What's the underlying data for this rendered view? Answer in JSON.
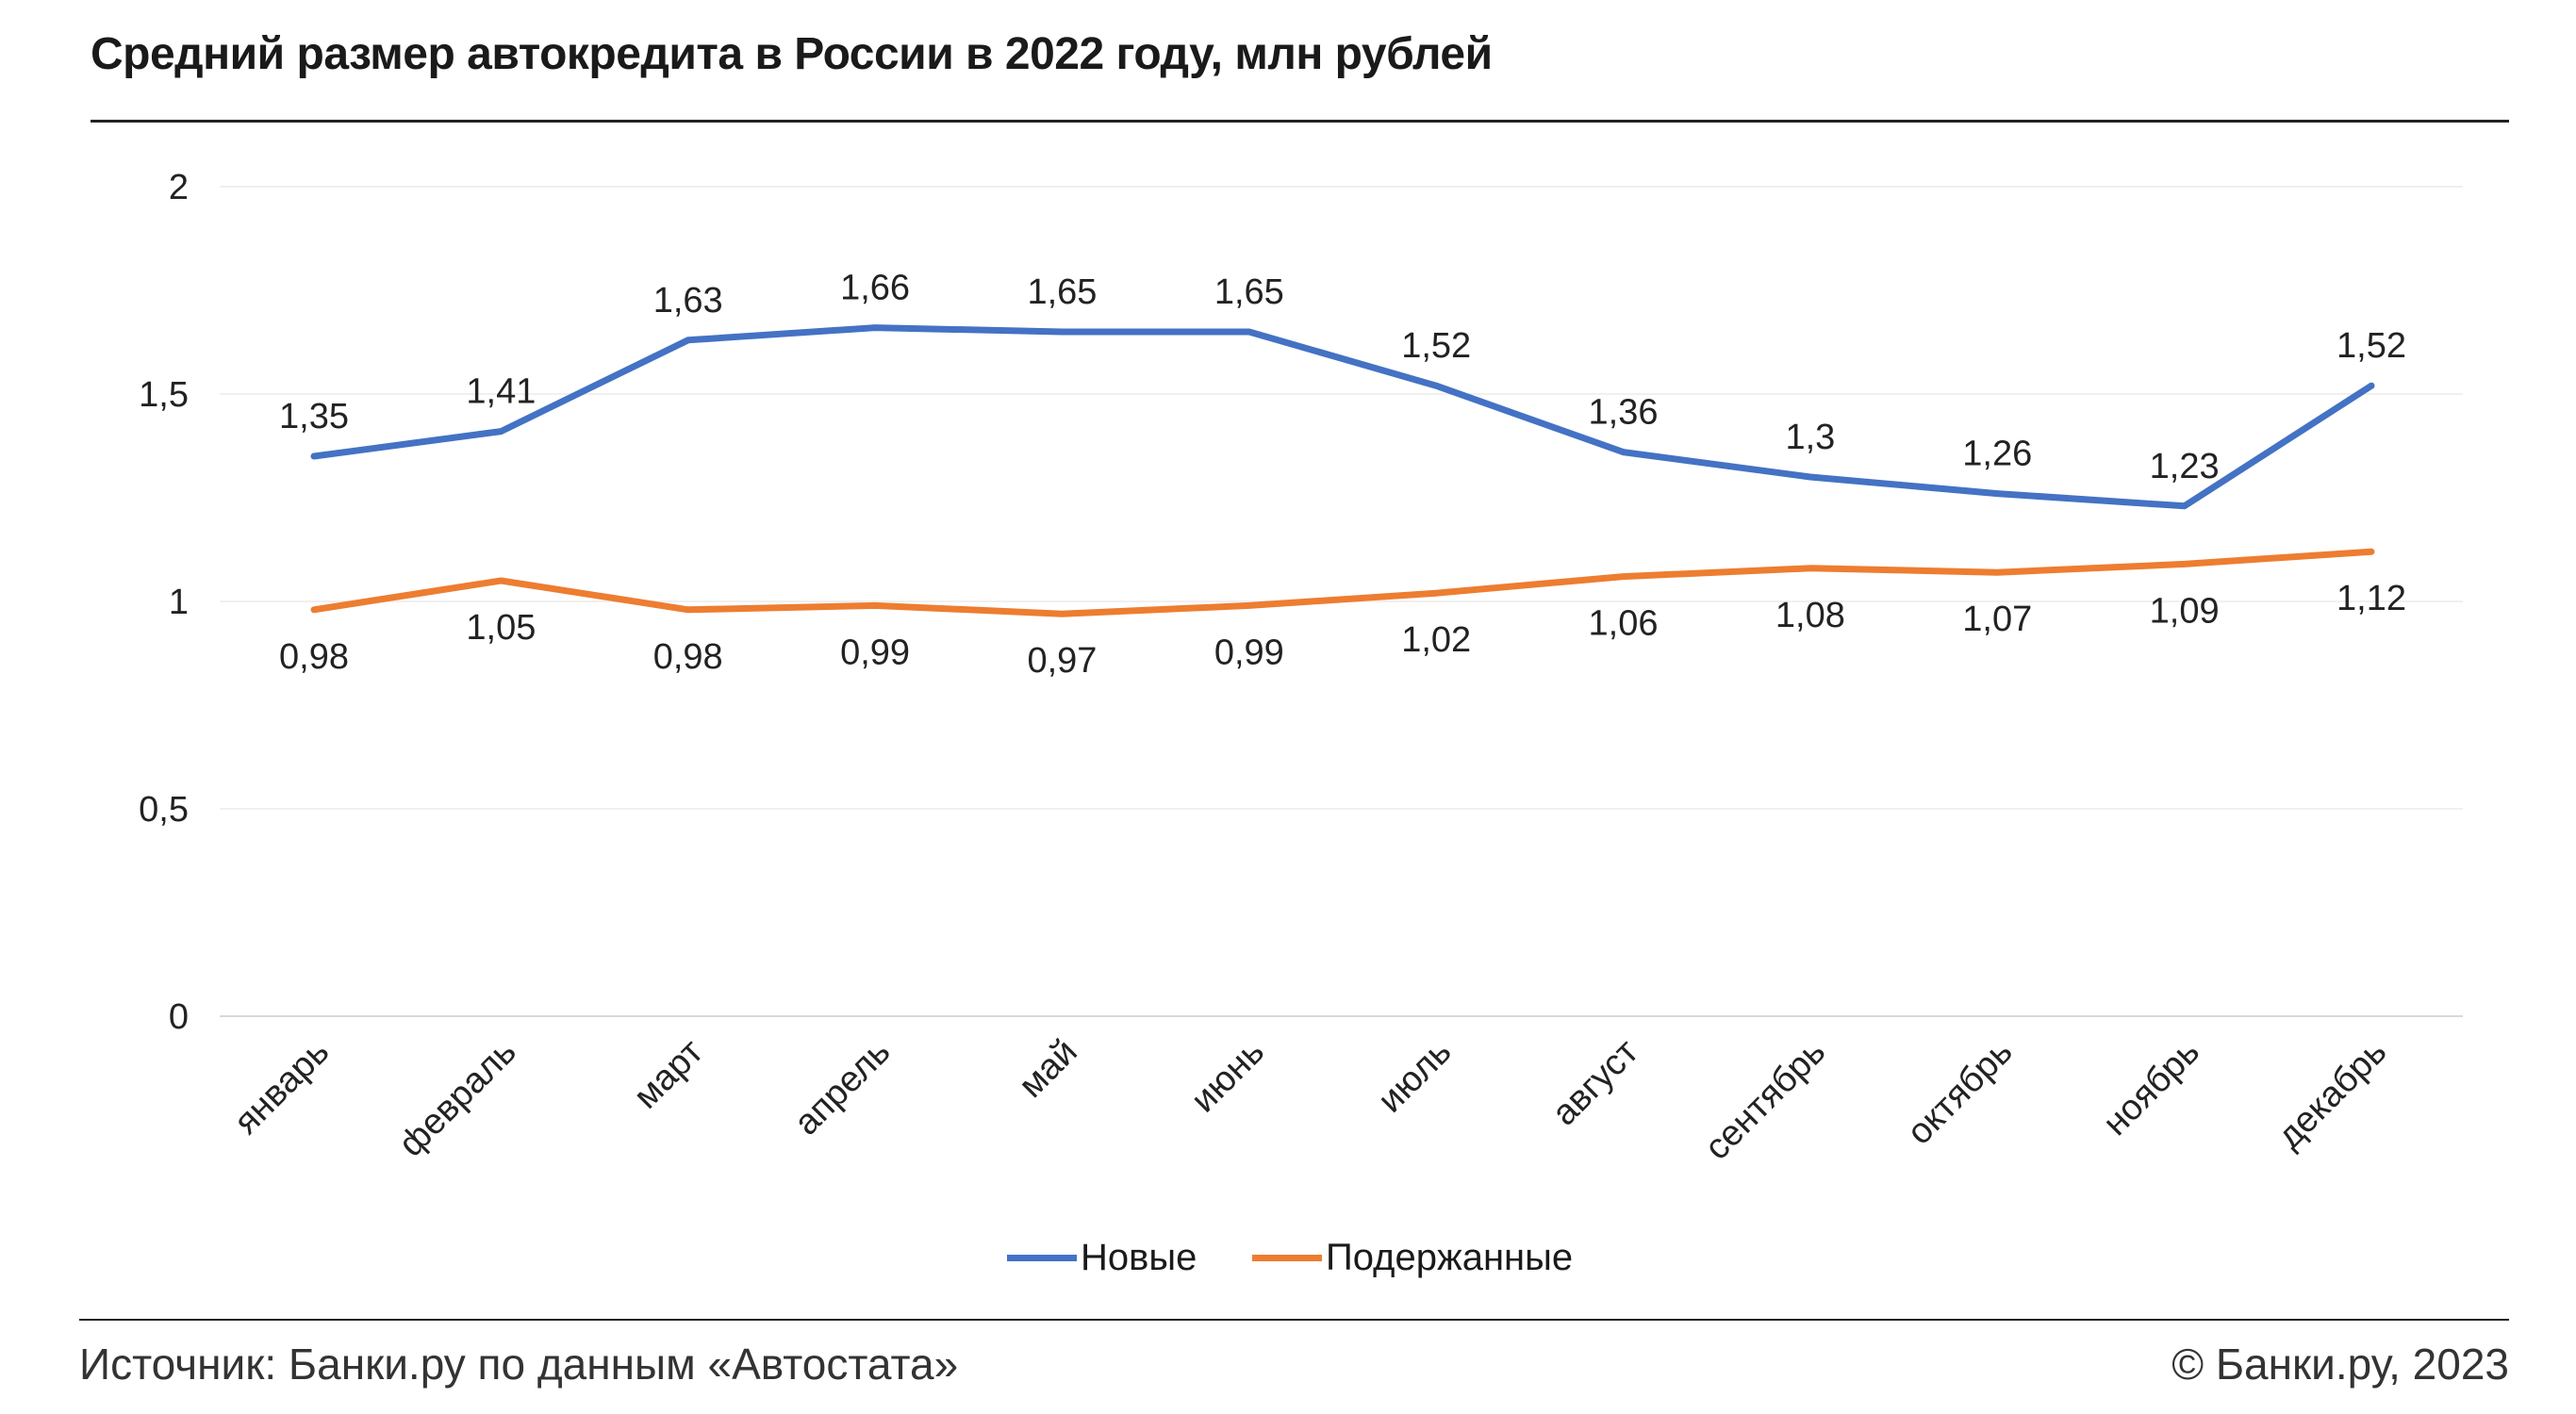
{
  "title": "Средний размер автокредита в России в 2022 году, млн рублей",
  "footer": {
    "source": "Источник: Банки.ру по данным «Автостата»",
    "copyright": "© Банки.ру, 2023"
  },
  "chart_data": {
    "type": "line",
    "title": "Средний размер автокредита в России в 2022 году, млн рублей",
    "xlabel": "",
    "ylabel": "",
    "ylim": [
      0,
      2
    ],
    "yticks": [
      "0",
      "0,5",
      "1",
      "1,5",
      "2"
    ],
    "ytick_values": [
      0,
      0.5,
      1,
      1.5,
      2
    ],
    "grid": true,
    "legend_position": "bottom",
    "categories": [
      "январь",
      "февраль",
      "март",
      "апрель",
      "май",
      "июнь",
      "июль",
      "август",
      "сентябрь",
      "октябрь",
      "ноябрь",
      "декабрь"
    ],
    "series": [
      {
        "name": "Новые",
        "color": "#4472C4",
        "label_position": "above",
        "values": [
          1.35,
          1.41,
          1.63,
          1.66,
          1.65,
          1.65,
          1.52,
          1.36,
          1.3,
          1.26,
          1.23,
          1.52
        ],
        "labels": [
          "1,35",
          "1,41",
          "1,63",
          "1,66",
          "1,65",
          "1,65",
          "1,52",
          "1,36",
          "1,3",
          "1,26",
          "1,23",
          "1,52"
        ]
      },
      {
        "name": "Подержанные",
        "color": "#ED7D31",
        "label_position": "below",
        "values": [
          0.98,
          1.05,
          0.98,
          0.99,
          0.97,
          0.99,
          1.02,
          1.06,
          1.08,
          1.07,
          1.09,
          1.12
        ],
        "labels": [
          "0,98",
          "1,05",
          "0,98",
          "0,99",
          "0,97",
          "0,99",
          "1,02",
          "1,06",
          "1,08",
          "1,07",
          "1,09",
          "1,12"
        ]
      }
    ]
  }
}
